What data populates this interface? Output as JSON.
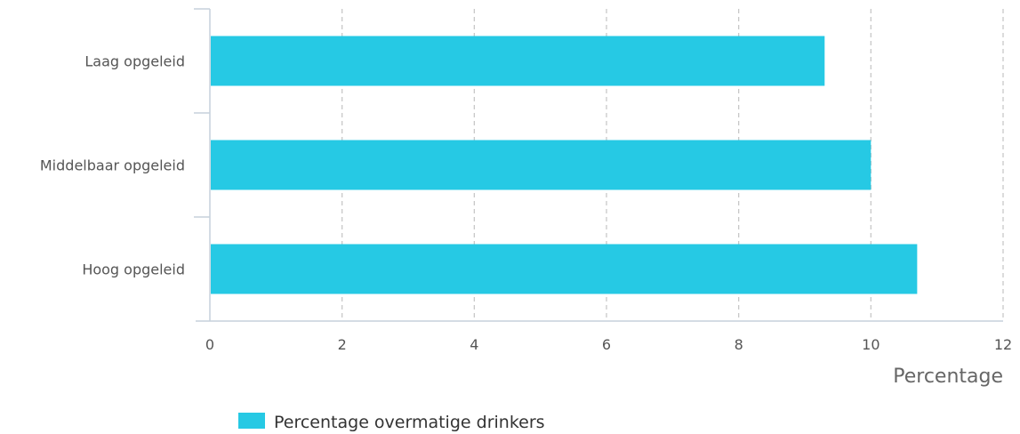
{
  "chart_data": {
    "type": "bar",
    "orientation": "horizontal",
    "categories": [
      "Laag opgeleid",
      "Middelbaar opgeleid",
      "Hoog opgeleid"
    ],
    "series": [
      {
        "name": "Percentage overmatige drinkers",
        "values": [
          9.3,
          10.0,
          10.7
        ],
        "color": "#26c9e4"
      }
    ],
    "xlabel": "Percentage",
    "ylabel": "",
    "xlim": [
      0,
      12
    ],
    "xticks": [
      0,
      2,
      4,
      6,
      8,
      10,
      12
    ],
    "grid": "vertical-dashed",
    "legend": "bottom-left"
  }
}
